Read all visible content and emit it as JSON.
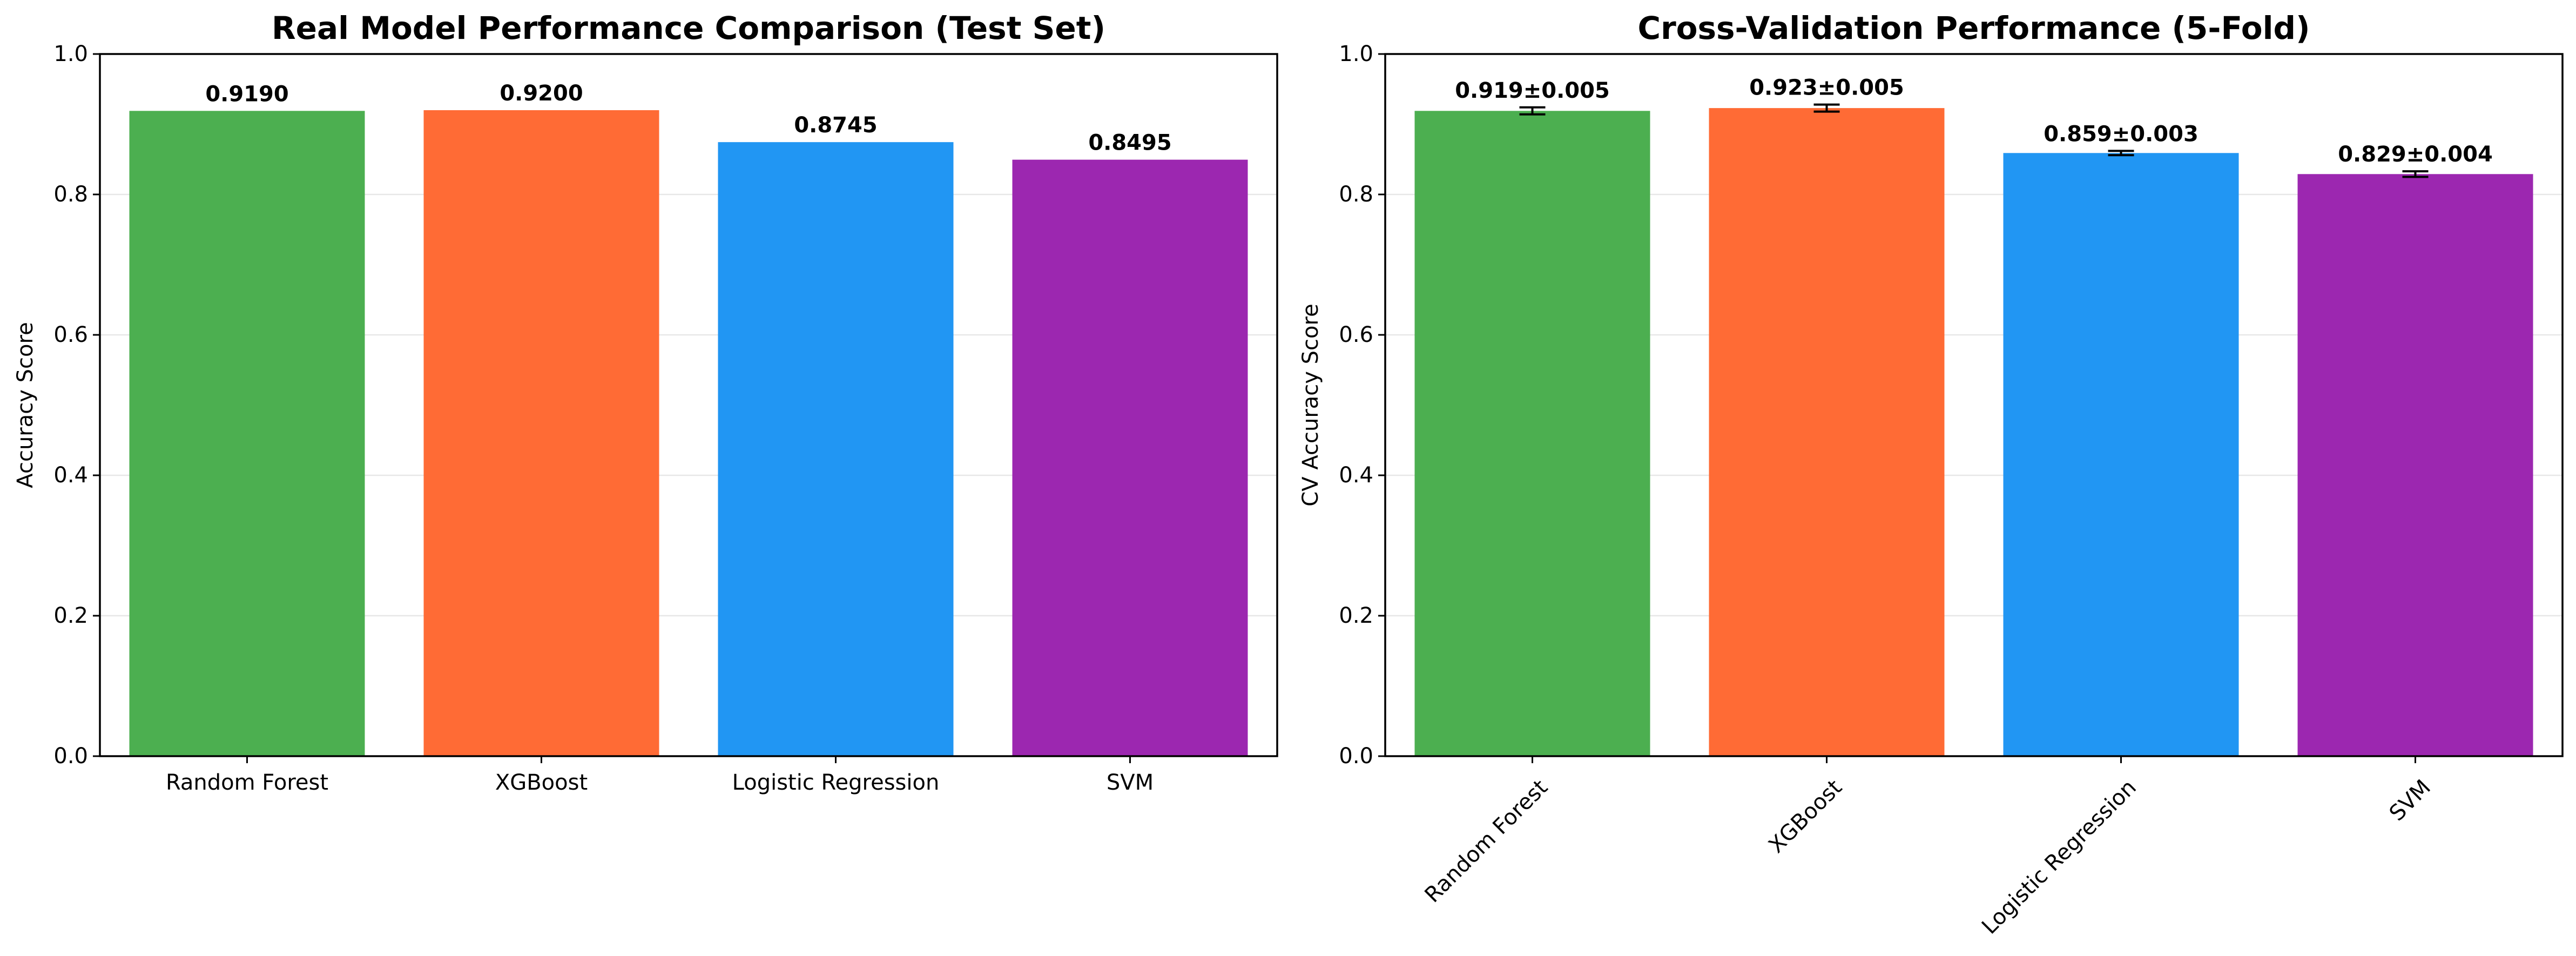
{
  "chart_data": [
    {
      "type": "bar",
      "title": "Real Model Performance Comparison (Test Set)",
      "xlabel": "",
      "ylabel": "Accuracy Score",
      "ylim": [
        0,
        1.0
      ],
      "yticks": [
        "0.0",
        "0.2",
        "0.4",
        "0.6",
        "0.8",
        "1.0"
      ],
      "grid": "horizontal",
      "categories": [
        "Random Forest",
        "XGBoost",
        "Logistic Regression",
        "SVM"
      ],
      "values": [
        0.919,
        0.92,
        0.8745,
        0.8495
      ],
      "value_labels": [
        "0.9190",
        "0.9200",
        "0.8745",
        "0.8495"
      ],
      "colors": [
        "#4caf50",
        "#ff6b35",
        "#2196f3",
        "#9c27b0"
      ],
      "xtick_rotation": 0
    },
    {
      "type": "bar",
      "title": "Cross-Validation Performance (5-Fold)",
      "xlabel": "",
      "ylabel": "CV Accuracy Score",
      "ylim": [
        0,
        1.0
      ],
      "yticks": [
        "0.0",
        "0.2",
        "0.4",
        "0.6",
        "0.8",
        "1.0"
      ],
      "grid": "horizontal",
      "categories": [
        "Random Forest",
        "XGBoost",
        "Logistic Regression",
        "SVM"
      ],
      "values": [
        0.919,
        0.923,
        0.859,
        0.829
      ],
      "errors": [
        0.005,
        0.005,
        0.003,
        0.004
      ],
      "value_labels": [
        "0.919±0.005",
        "0.923±0.005",
        "0.859±0.003",
        "0.829±0.004"
      ],
      "colors": [
        "#4caf50",
        "#ff6b35",
        "#2196f3",
        "#9c27b0"
      ],
      "xtick_rotation": -45
    }
  ]
}
